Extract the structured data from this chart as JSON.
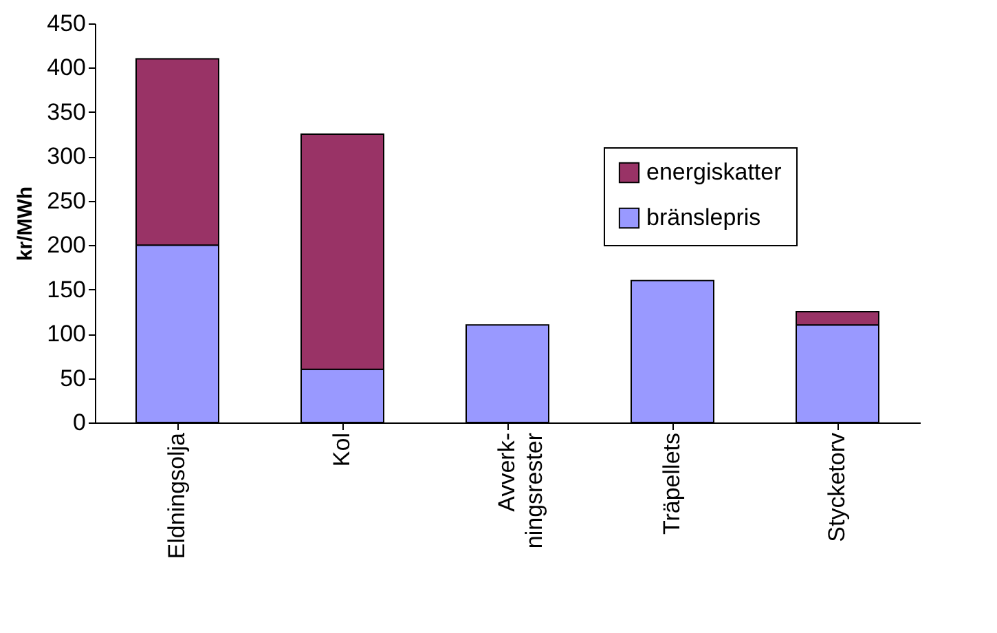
{
  "chart_data": {
    "type": "bar",
    "stacked": true,
    "ylabel": "kr/MWh",
    "categories": [
      "Eldningsolja",
      "Kol",
      "Avverk-\nningsrester",
      "Träpellets",
      "Stycketorv"
    ],
    "series": [
      {
        "name": "bränslepris",
        "color": "#9999ff",
        "values": [
          200,
          60,
          110,
          160,
          110
        ]
      },
      {
        "name": "energiskatter",
        "color": "#993366",
        "values": [
          210,
          265,
          null,
          null,
          15
        ]
      }
    ],
    "ylim": [
      0,
      450
    ],
    "yticks": [
      0,
      50,
      100,
      150,
      200,
      250,
      300,
      350,
      400,
      450
    ],
    "grid": false,
    "legend": "top right"
  }
}
